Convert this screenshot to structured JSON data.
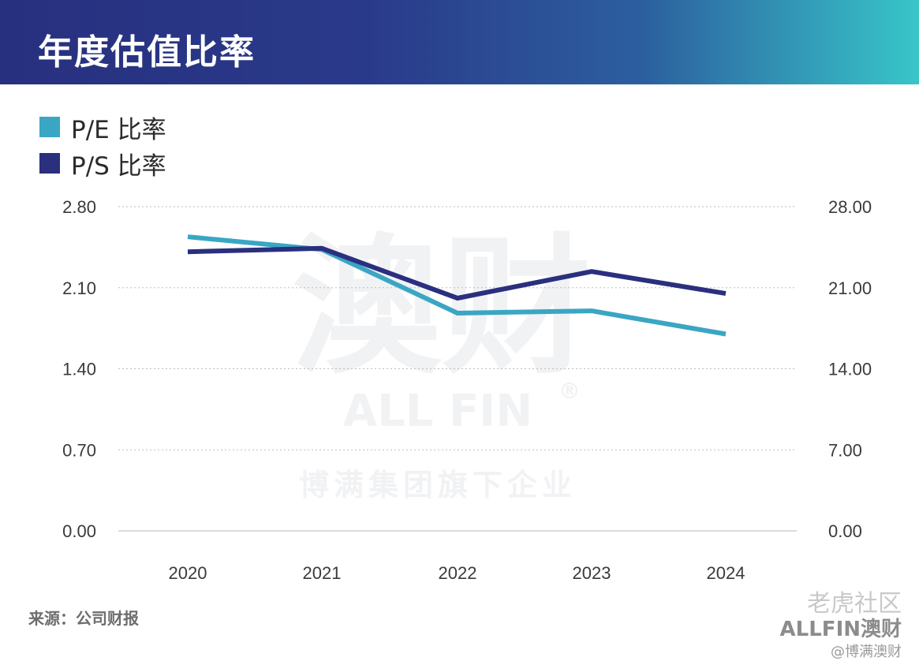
{
  "header": {
    "title": "年度估值比率"
  },
  "legend": [
    {
      "label": "P/E 比率",
      "color": "#3aa6c4"
    },
    {
      "label": "P/S 比率",
      "color": "#2a2f7e"
    }
  ],
  "watermark": {
    "mark": "澳财",
    "brand": "ALL FIN",
    "registered": "®",
    "tagline": "博满集团旗下企业"
  },
  "source": "来源：公司财报",
  "brand": {
    "community": "老虎社区",
    "logo": "ALLFIN澳财",
    "handle": "@博满澳财"
  },
  "chart_data": {
    "type": "line",
    "x": [
      "2020",
      "2021",
      "2022",
      "2023",
      "2024"
    ],
    "y_left": {
      "ticks": [
        "2.80",
        "2.10",
        "1.40",
        "0.70",
        "0.00"
      ],
      "range": [
        0,
        2.8
      ]
    },
    "y_right": {
      "ticks": [
        "28.00",
        "21.00",
        "14.00",
        "7.00",
        "0.00"
      ],
      "range": [
        0,
        28
      ]
    },
    "series": [
      {
        "name": "P/E 比率",
        "axis": "left",
        "color": "#3aa6c4",
        "values": [
          2.54,
          2.43,
          1.88,
          1.9,
          1.7
        ]
      },
      {
        "name": "P/S 比率",
        "axis": "right",
        "color": "#2a2f7e",
        "values": [
          24.1,
          24.4,
          20.1,
          22.4,
          20.5
        ]
      }
    ],
    "grid": true
  }
}
